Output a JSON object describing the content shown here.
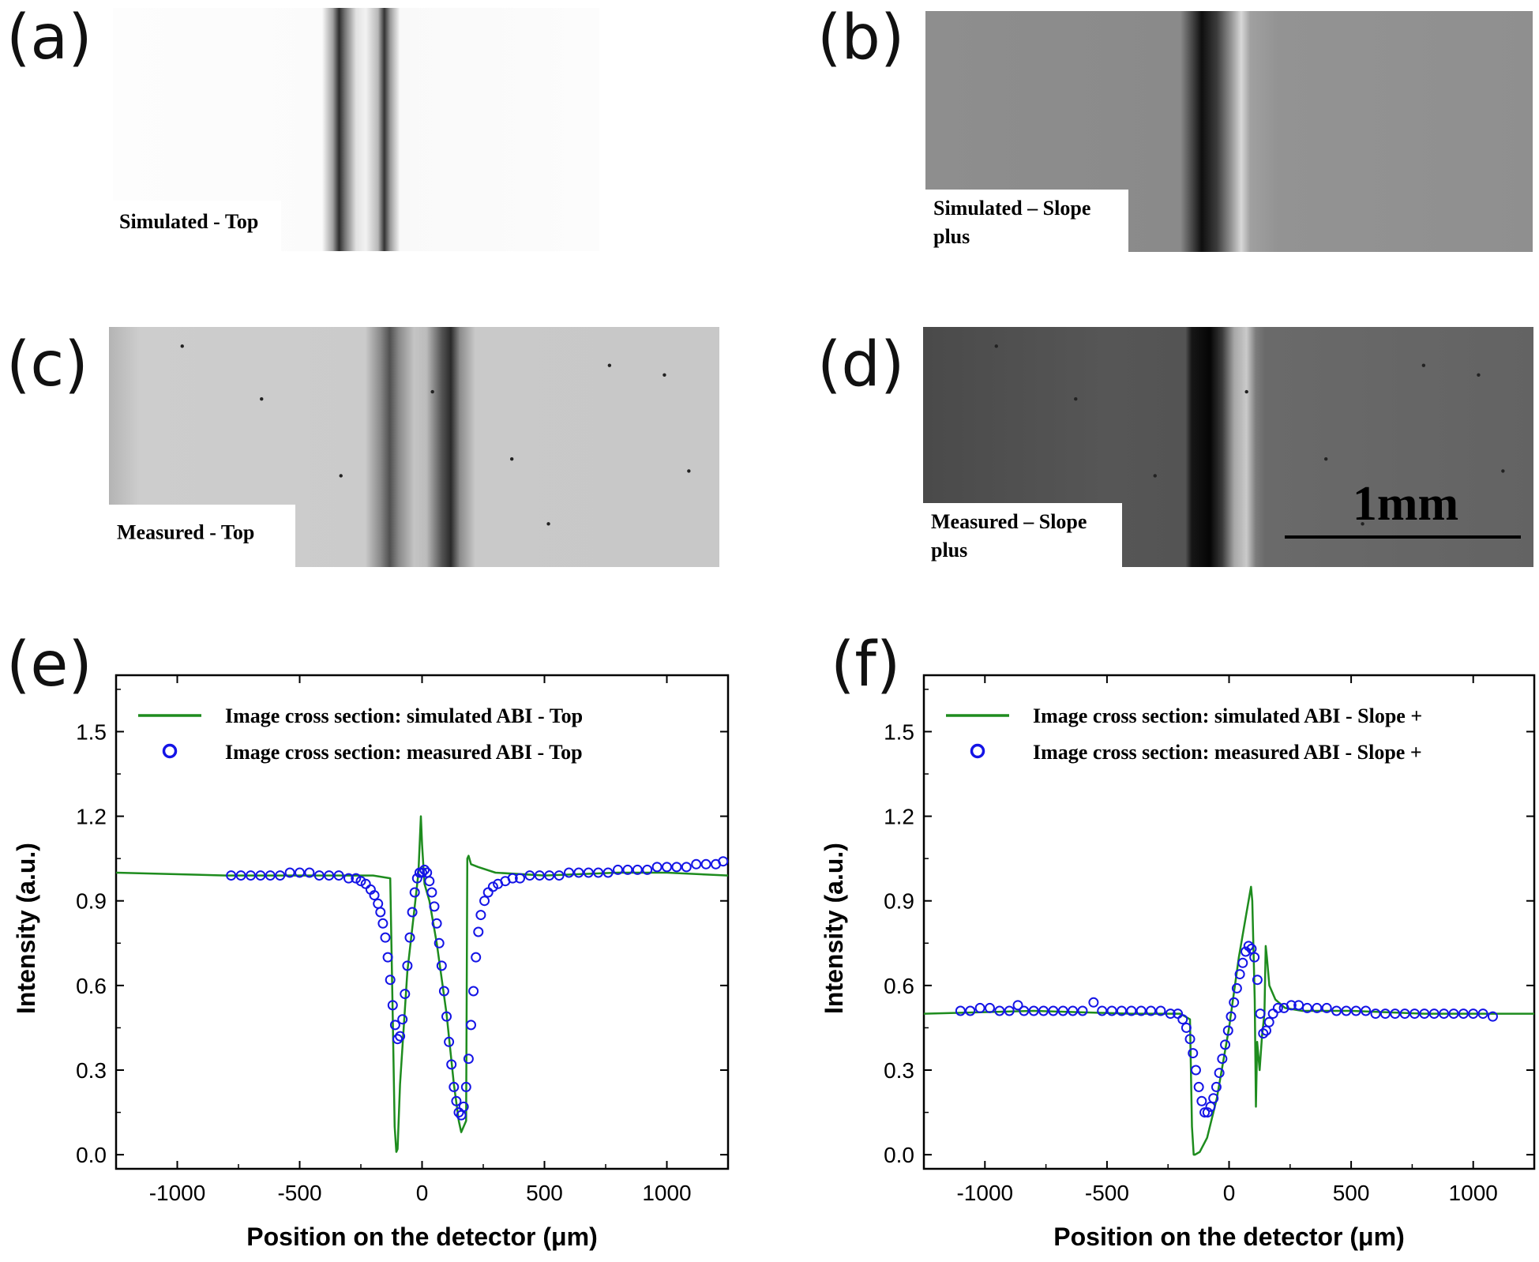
{
  "figure": {
    "panels": [
      {
        "letter": "(a)",
        "caption_lines": [
          "Simulated - Top"
        ],
        "profile": "top",
        "tone": "sim"
      },
      {
        "letter": "(b)",
        "caption_lines": [
          "Simulated – Slope",
          "plus"
        ],
        "profile": "slope",
        "tone": "sim"
      },
      {
        "letter": "(c)",
        "caption_lines": [
          "Measured - Top"
        ],
        "profile": "top",
        "tone": "meas"
      },
      {
        "letter": "(d)",
        "caption_lines": [
          "Measured – Slope",
          "plus"
        ],
        "profile": "slope",
        "tone": "meas"
      }
    ],
    "scale_bar_label": "1mm",
    "plot_letters": [
      "(e)",
      "(f)"
    ]
  },
  "colors": {
    "simulated_line": "#1e8c1e",
    "measured_marker": "#1414e6",
    "axis": "#000000"
  },
  "chart_data": [
    {
      "type": "line",
      "title": "",
      "xlabel": "Position on the detector (μm)",
      "ylabel": "Intensity (a.u.)",
      "xlim": [
        -1250,
        1250
      ],
      "ylim": [
        -0.05,
        1.7
      ],
      "xticks": [
        -1000,
        -500,
        0,
        500,
        1000
      ],
      "xtick_labels": [
        "-1000",
        "-500",
        "0",
        "500",
        "1000"
      ],
      "yticks": [
        0.0,
        0.3,
        0.6,
        0.9,
        1.2,
        1.5
      ],
      "ytick_labels": [
        "0.0",
        "0.3",
        "0.6",
        "0.9",
        "1.2",
        "1.5"
      ],
      "series": [
        {
          "name": "Image cross section: simulated ABI - Top",
          "style": "line",
          "x": [
            -1250,
            -800,
            -300,
            -200,
            -130,
            -120,
            -112,
            -105,
            -100,
            -90,
            -60,
            -30,
            -15,
            -5,
            0,
            10,
            30,
            60,
            100,
            130,
            150,
            160,
            180,
            185,
            190,
            200,
            230,
            300,
            500,
            800,
            1000,
            1250
          ],
          "y": [
            1.0,
            0.99,
            0.99,
            0.99,
            0.98,
            0.5,
            0.1,
            0.01,
            0.02,
            0.25,
            0.65,
            0.88,
            1.0,
            1.2,
            1.1,
            0.96,
            0.9,
            0.75,
            0.5,
            0.25,
            0.12,
            0.08,
            0.12,
            1.05,
            1.06,
            1.03,
            1.02,
            1.0,
            0.99,
            1.0,
            1.0,
            0.99
          ]
        },
        {
          "name": "Image cross section: measured ABI - Top",
          "style": "markers",
          "x": [
            -780,
            -740,
            -700,
            -660,
            -620,
            -580,
            -540,
            -500,
            -460,
            -420,
            -380,
            -340,
            -300,
            -270,
            -250,
            -230,
            -210,
            -195,
            -180,
            -170,
            -160,
            -150,
            -140,
            -130,
            -120,
            -110,
            -100,
            -90,
            -80,
            -70,
            -60,
            -50,
            -40,
            -30,
            -20,
            -10,
            0,
            10,
            20,
            30,
            40,
            50,
            60,
            70,
            80,
            90,
            100,
            110,
            120,
            130,
            140,
            150,
            160,
            170,
            180,
            190,
            200,
            210,
            220,
            230,
            240,
            255,
            270,
            290,
            310,
            340,
            370,
            400,
            440,
            480,
            520,
            560,
            600,
            640,
            680,
            720,
            760,
            800,
            840,
            880,
            920,
            960,
            1000,
            1040,
            1080,
            1120,
            1160,
            1200,
            1230
          ],
          "y": [
            0.99,
            0.99,
            0.99,
            0.99,
            0.99,
            0.99,
            1.0,
            1.0,
            1.0,
            0.99,
            0.99,
            0.99,
            0.98,
            0.98,
            0.97,
            0.96,
            0.94,
            0.92,
            0.89,
            0.86,
            0.82,
            0.77,
            0.7,
            0.62,
            0.53,
            0.46,
            0.41,
            0.42,
            0.48,
            0.57,
            0.67,
            0.77,
            0.86,
            0.93,
            0.98,
            1.0,
            1.0,
            1.01,
            1.0,
            0.97,
            0.93,
            0.88,
            0.82,
            0.75,
            0.67,
            0.58,
            0.49,
            0.4,
            0.32,
            0.24,
            0.19,
            0.15,
            0.14,
            0.17,
            0.24,
            0.34,
            0.46,
            0.58,
            0.7,
            0.79,
            0.85,
            0.9,
            0.93,
            0.95,
            0.96,
            0.97,
            0.98,
            0.98,
            0.99,
            0.99,
            0.99,
            0.99,
            1.0,
            1.0,
            1.0,
            1.0,
            1.0,
            1.01,
            1.01,
            1.01,
            1.01,
            1.02,
            1.02,
            1.02,
            1.02,
            1.03,
            1.03,
            1.03,
            1.04
          ]
        }
      ]
    },
    {
      "type": "line",
      "title": "",
      "xlabel": "Position on the detector (μm)",
      "ylabel": "Intensity (a.u.)",
      "xlim": [
        -1250,
        1250
      ],
      "ylim": [
        -0.05,
        1.7
      ],
      "xticks": [
        -1000,
        -500,
        0,
        500,
        1000
      ],
      "xtick_labels": [
        "-1000",
        "-500",
        "0",
        "500",
        "1000"
      ],
      "yticks": [
        0.0,
        0.3,
        0.6,
        0.9,
        1.2,
        1.5
      ],
      "ytick_labels": [
        "0.0",
        "0.3",
        "0.6",
        "0.9",
        "1.2",
        "1.5"
      ],
      "series": [
        {
          "name": "Image cross section: simulated ABI - Slope +",
          "style": "line",
          "x": [
            -1250,
            -800,
            -400,
            -200,
            -160,
            -152,
            -145,
            -140,
            -120,
            -90,
            -50,
            0,
            40,
            70,
            90,
            95,
            105,
            110,
            115,
            125,
            135,
            145,
            150,
            155,
            165,
            190,
            230,
            300,
            500,
            800,
            1000,
            1250
          ],
          "y": [
            0.5,
            0.51,
            0.5,
            0.5,
            0.48,
            0.1,
            0.0,
            0.0,
            0.01,
            0.06,
            0.2,
            0.45,
            0.7,
            0.85,
            0.95,
            0.9,
            0.55,
            0.17,
            0.4,
            0.3,
            0.42,
            0.5,
            0.74,
            0.7,
            0.6,
            0.55,
            0.52,
            0.51,
            0.51,
            0.5,
            0.5,
            0.5
          ]
        },
        {
          "name": "Image cross section: measured ABI - Slope +",
          "style": "markers",
          "x": [
            -1100,
            -1060,
            -1020,
            -980,
            -940,
            -900,
            -865,
            -840,
            -800,
            -760,
            -720,
            -680,
            -640,
            -600,
            -555,
            -520,
            -480,
            -440,
            -400,
            -360,
            -320,
            -280,
            -240,
            -210,
            -190,
            -175,
            -160,
            -148,
            -136,
            -124,
            -112,
            -100,
            -88,
            -76,
            -64,
            -52,
            -40,
            -28,
            -16,
            -4,
            8,
            20,
            32,
            44,
            56,
            68,
            80,
            92,
            104,
            116,
            128,
            140,
            152,
            164,
            180,
            200,
            225,
            255,
            285,
            320,
            360,
            400,
            440,
            480,
            520,
            560,
            600,
            640,
            680,
            720,
            760,
            800,
            840,
            880,
            920,
            960,
            1000,
            1040,
            1080
          ],
          "y": [
            0.51,
            0.51,
            0.52,
            0.52,
            0.51,
            0.51,
            0.53,
            0.51,
            0.51,
            0.51,
            0.51,
            0.51,
            0.51,
            0.51,
            0.54,
            0.51,
            0.51,
            0.51,
            0.51,
            0.51,
            0.51,
            0.51,
            0.5,
            0.5,
            0.48,
            0.45,
            0.41,
            0.36,
            0.3,
            0.24,
            0.19,
            0.15,
            0.15,
            0.17,
            0.2,
            0.24,
            0.29,
            0.34,
            0.39,
            0.44,
            0.49,
            0.54,
            0.59,
            0.64,
            0.68,
            0.72,
            0.74,
            0.73,
            0.7,
            0.62,
            0.5,
            0.43,
            0.44,
            0.47,
            0.5,
            0.52,
            0.52,
            0.53,
            0.53,
            0.52,
            0.52,
            0.52,
            0.51,
            0.51,
            0.51,
            0.51,
            0.5,
            0.5,
            0.5,
            0.5,
            0.5,
            0.5,
            0.5,
            0.5,
            0.5,
            0.5,
            0.5,
            0.5,
            0.49
          ]
        }
      ]
    }
  ]
}
